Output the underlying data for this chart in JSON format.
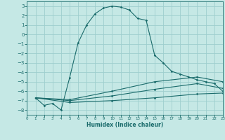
{
  "background_color": "#c5e8e5",
  "grid_color": "#9ecece",
  "line_color": "#1a6b6b",
  "xlabel": "Humidex (Indice chaleur)",
  "xlim": [
    0,
    23
  ],
  "ylim": [
    -8.5,
    3.5
  ],
  "yticks": [
    3,
    2,
    1,
    0,
    -1,
    -2,
    -3,
    -4,
    -5,
    -6,
    -7,
    -8
  ],
  "xticks": [
    0,
    1,
    2,
    3,
    4,
    5,
    6,
    7,
    8,
    9,
    10,
    11,
    12,
    13,
    14,
    15,
    16,
    17,
    18,
    19,
    20,
    21,
    22,
    23
  ],
  "main_x": [
    1,
    2,
    3,
    4,
    5,
    6,
    7,
    8,
    9,
    10,
    11,
    12,
    13,
    14,
    15,
    16,
    17,
    18,
    19,
    20,
    21,
    22,
    23
  ],
  "main_y": [
    -6.7,
    -7.5,
    -7.3,
    -8.0,
    -4.6,
    -0.9,
    1.0,
    2.2,
    2.8,
    3.0,
    2.9,
    2.6,
    1.7,
    1.5,
    -2.2,
    -3.0,
    -3.9,
    -4.2,
    -4.5,
    -4.8,
    -5.0,
    -5.2,
    -6.0
  ],
  "line2_x": [
    1,
    5,
    10,
    15,
    20,
    23
  ],
  "line2_y": [
    -6.7,
    -7.2,
    -7.0,
    -6.7,
    -6.3,
    -6.2
  ],
  "line3_x": [
    1,
    5,
    10,
    15,
    20,
    23
  ],
  "line3_y": [
    -6.7,
    -7.0,
    -6.5,
    -5.8,
    -5.2,
    -5.7
  ],
  "line4_x": [
    1,
    5,
    10,
    15,
    20,
    23
  ],
  "line4_y": [
    -6.7,
    -6.9,
    -6.0,
    -5.0,
    -4.5,
    -5.0
  ]
}
